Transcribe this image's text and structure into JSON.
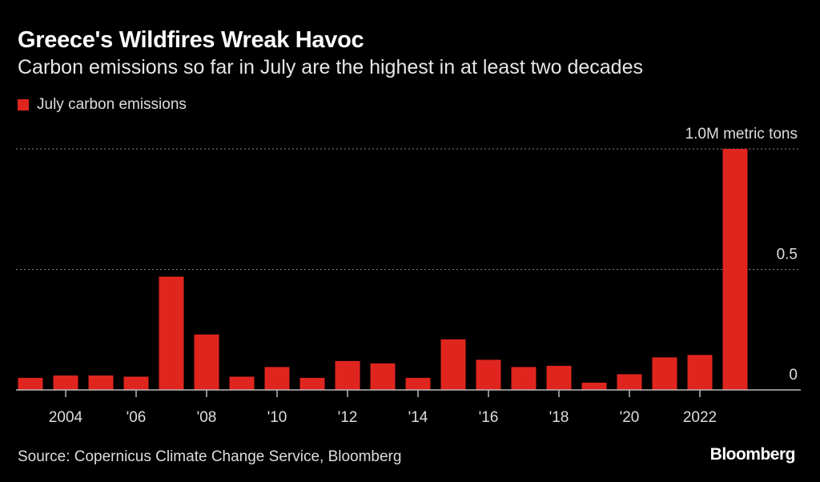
{
  "title": "Greece's Wildfires Wreak Havoc",
  "subtitle": "Carbon emissions so far in July are the highest in at least two decades",
  "legend": {
    "label": "July carbon emissions",
    "color": "#e0251f"
  },
  "source": "Source: Copernicus Climate Change Service, Bloomberg",
  "brand": "Bloomberg",
  "chart_data": {
    "type": "bar",
    "categories": [
      "2003",
      "2004",
      "2005",
      "2006",
      "2007",
      "2008",
      "2009",
      "2010",
      "2011",
      "2012",
      "2013",
      "2014",
      "2015",
      "2016",
      "2017",
      "2018",
      "2019",
      "2020",
      "2021",
      "2022",
      "2023"
    ],
    "series": [
      {
        "name": "July carbon emissions",
        "values": [
          0.05,
          0.06,
          0.06,
          0.055,
          0.47,
          0.23,
          0.055,
          0.095,
          0.05,
          0.12,
          0.11,
          0.05,
          0.21,
          0.125,
          0.095,
          0.1,
          0.03,
          0.065,
          0.135,
          0.145,
          1.0
        ]
      }
    ],
    "ylim": [
      0,
      1.0
    ],
    "yticks": [
      {
        "value": 0,
        "label": "0"
      },
      {
        "value": 0.5,
        "label": "0.5"
      },
      {
        "value": 1.0,
        "label": "1.0M metric tons"
      }
    ],
    "xticks": [
      {
        "category": "2004",
        "label": "2004"
      },
      {
        "category": "2006",
        "label": "'06"
      },
      {
        "category": "2008",
        "label": "'08"
      },
      {
        "category": "2010",
        "label": "'10"
      },
      {
        "category": "2012",
        "label": "'12"
      },
      {
        "category": "2014",
        "label": "'14"
      },
      {
        "category": "2016",
        "label": "'16"
      },
      {
        "category": "2018",
        "label": "'18"
      },
      {
        "category": "2020",
        "label": "'20"
      },
      {
        "category": "2022",
        "label": "2022"
      }
    ],
    "grid": true,
    "bar_color": "#e0251f"
  }
}
